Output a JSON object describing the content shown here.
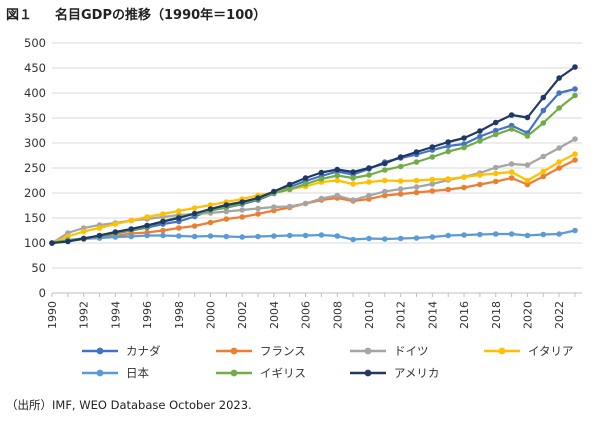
{
  "header": {
    "figure_label": "図１",
    "title": "名目GDPの推移（1990年＝100）"
  },
  "source_note": "（出所）IMF, WEO Database October 2023.",
  "chart_data": {
    "type": "line",
    "title": "名目GDPの推移（1990年＝100）",
    "xlabel": "",
    "ylabel": "",
    "ylim": [
      0,
      500
    ],
    "yticks": [
      0,
      50,
      100,
      150,
      200,
      250,
      300,
      350,
      400,
      450,
      500
    ],
    "x": [
      1990,
      1991,
      1992,
      1993,
      1994,
      1995,
      1996,
      1997,
      1998,
      1999,
      2000,
      2001,
      2002,
      2003,
      2004,
      2005,
      2006,
      2007,
      2008,
      2009,
      2010,
      2011,
      2012,
      2013,
      2014,
      2015,
      2016,
      2017,
      2018,
      2019,
      2020,
      2021,
      2022,
      2023
    ],
    "xtick_labels": [
      "1990",
      "1992",
      "1994",
      "1996",
      "1998",
      "2000",
      "2002",
      "2004",
      "2006",
      "2008",
      "2010",
      "2012",
      "2014",
      "2016",
      "2018",
      "2020",
      "2022"
    ],
    "grid": true,
    "legend_position": "bottom",
    "series": [
      {
        "name": "カナダ",
        "color": "#4472c4",
        "values": [
          100,
          104,
          108,
          113,
          119,
          125,
          131,
          138,
          143,
          153,
          165,
          171,
          178,
          186,
          199,
          212,
          224,
          234,
          243,
          237,
          248,
          262,
          270,
          277,
          286,
          294,
          298,
          313,
          325,
          335,
          320,
          365,
          400,
          408
        ]
      },
      {
        "name": "フランス",
        "color": "#ed7d31",
        "values": [
          100,
          105,
          108,
          110,
          114,
          119,
          121,
          125,
          130,
          134,
          141,
          148,
          152,
          158,
          165,
          171,
          179,
          186,
          190,
          184,
          188,
          195,
          198,
          201,
          204,
          207,
          211,
          217,
          223,
          230,
          217,
          233,
          250,
          266
        ]
      },
      {
        "name": "ドイツ",
        "color": "#a5a5a5",
        "values": [
          100,
          120,
          130,
          136,
          140,
          145,
          148,
          152,
          156,
          158,
          160,
          163,
          166,
          169,
          172,
          173,
          179,
          189,
          195,
          186,
          195,
          203,
          208,
          212,
          218,
          226,
          232,
          240,
          251,
          258,
          256,
          273,
          290,
          308
        ]
      },
      {
        "name": "イタリア",
        "color": "#ffc000",
        "values": [
          100,
          113,
          123,
          130,
          138,
          145,
          152,
          158,
          164,
          170,
          176,
          182,
          188,
          195,
          201,
          208,
          213,
          222,
          225,
          218,
          222,
          225,
          224,
          225,
          227,
          228,
          232,
          236,
          239,
          242,
          225,
          243,
          262,
          278
        ]
      },
      {
        "name": "日本",
        "color": "#5b9bd5",
        "values": [
          100,
          106,
          109,
          110,
          112,
          113,
          115,
          115,
          114,
          113,
          114,
          113,
          112,
          113,
          114,
          115,
          115,
          116,
          114,
          107,
          109,
          108,
          109,
          110,
          112,
          115,
          116,
          117,
          118,
          118,
          115,
          117,
          118,
          125
        ]
      },
      {
        "name": "イギリス",
        "color": "#70ad47",
        "values": [
          100,
          105,
          109,
          114,
          120,
          126,
          133,
          143,
          152,
          158,
          165,
          172,
          180,
          188,
          200,
          207,
          218,
          228,
          235,
          230,
          236,
          246,
          253,
          262,
          272,
          283,
          291,
          304,
          317,
          328,
          314,
          340,
          370,
          395
        ]
      },
      {
        "name": "アメリカ",
        "color": "#1f3864",
        "values": [
          100,
          103,
          109,
          115,
          122,
          128,
          135,
          143,
          150,
          159,
          168,
          176,
          182,
          190,
          203,
          217,
          230,
          241,
          247,
          242,
          250,
          259,
          272,
          282,
          292,
          302,
          310,
          324,
          341,
          356,
          351,
          391,
          430,
          452
        ]
      }
    ]
  }
}
